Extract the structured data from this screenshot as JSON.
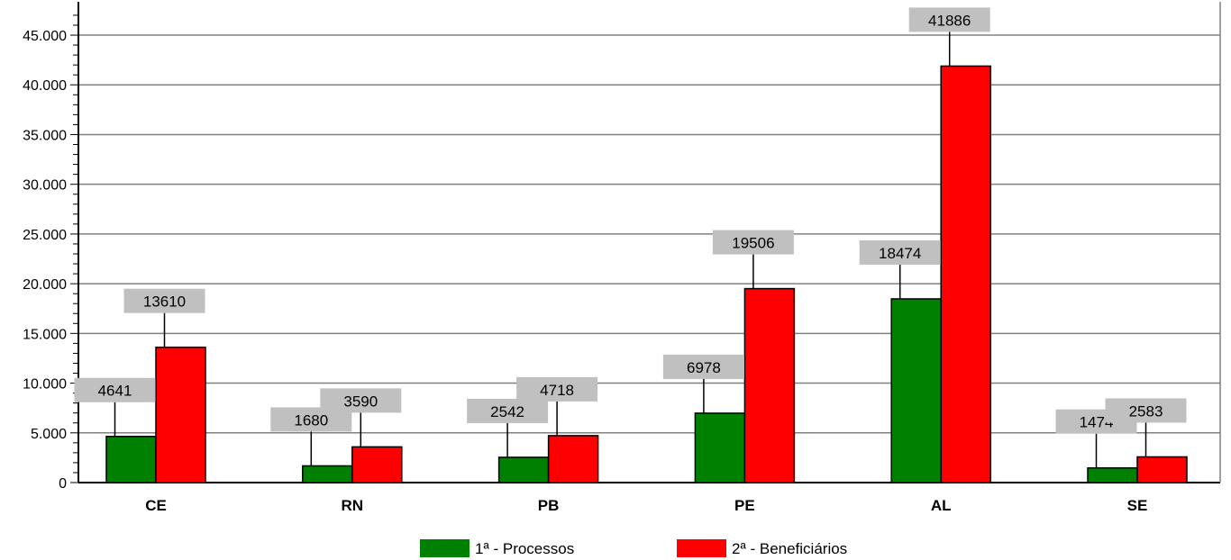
{
  "chart_data": {
    "type": "bar",
    "categories": [
      "CE",
      "RN",
      "PB",
      "PE",
      "AL",
      "SE"
    ],
    "series": [
      {
        "name": "1ª - Processos",
        "values": [
          4641,
          1680,
          2542,
          6978,
          18474,
          1474
        ],
        "color": "#008000"
      },
      {
        "name": "2ª - Beneficiários",
        "values": [
          13610,
          3590,
          4718,
          19506,
          41886,
          2583
        ],
        "color": "#ff0000"
      }
    ],
    "yticks": [
      0,
      5000,
      10000,
      15000,
      20000,
      25000,
      30000,
      35000,
      40000,
      45000
    ],
    "ytick_labels": [
      "0",
      "5.000",
      "10.000",
      "15.000",
      "20.000",
      "25.000",
      "30.000",
      "35.000",
      "40.000",
      "45.000"
    ],
    "ylim": [
      0,
      48000
    ],
    "grid": true,
    "legend_position": "bottom",
    "label_box_color": "#c0c0c0",
    "title": "",
    "xlabel": "",
    "ylabel": ""
  }
}
